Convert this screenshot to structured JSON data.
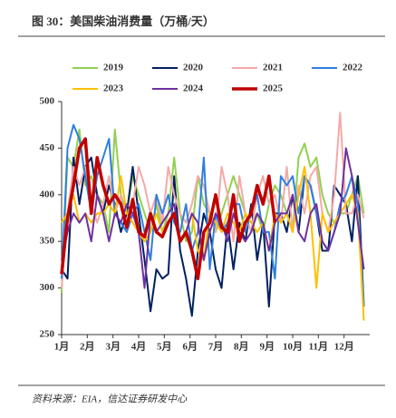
{
  "chart_data": {
    "type": "line",
    "title": "图 30：美国柴油消费量（万桶/天）",
    "source": "资料来源：EIA，信达证券研发中心",
    "x": [
      0,
      1,
      2,
      3,
      4,
      5,
      6,
      7,
      8,
      9,
      10,
      11,
      12,
      13,
      14,
      15,
      16,
      17,
      18,
      19,
      20,
      21,
      22,
      23,
      24,
      25,
      26,
      27,
      28,
      29,
      30,
      31,
      32,
      33,
      34,
      35,
      36,
      37,
      38,
      39,
      40,
      41,
      42,
      43,
      44,
      45,
      46,
      47,
      48,
      49,
      50,
      51
    ],
    "xlim": [
      0,
      52
    ],
    "xticks": [
      {
        "value": 0,
        "label": "1月"
      },
      {
        "value": 4.33,
        "label": "2月"
      },
      {
        "value": 8.67,
        "label": "3月"
      },
      {
        "value": 13,
        "label": "4月"
      },
      {
        "value": 17.33,
        "label": "5月"
      },
      {
        "value": 21.67,
        "label": "6月"
      },
      {
        "value": 26,
        "label": "7月"
      },
      {
        "value": 30.33,
        "label": "8月"
      },
      {
        "value": 34.67,
        "label": "9月"
      },
      {
        "value": 39,
        "label": "10月"
      },
      {
        "value": 43.33,
        "label": "11月"
      },
      {
        "value": 47.67,
        "label": "12月"
      }
    ],
    "ylim": [
      250,
      500
    ],
    "yticks": [
      250,
      300,
      350,
      400,
      450,
      500
    ],
    "series": [
      {
        "name": "2019",
        "color": "#92d050",
        "width": 2,
        "values": [
          295,
          440,
          430,
          470,
          410,
          420,
          400,
          390,
          360,
          470,
          400,
          380,
          420,
          400,
          380,
          360,
          390,
          360,
          380,
          440,
          380,
          350,
          360,
          420,
          390,
          380,
          360,
          380,
          400,
          420,
          400,
          380,
          370,
          380,
          360,
          390,
          410,
          400,
          380,
          360,
          440,
          455,
          430,
          440,
          400,
          380,
          370,
          380,
          380,
          400,
          420,
          380
        ]
      },
      {
        "name": "2020",
        "color": "#002060",
        "width": 2,
        "values": [
          320,
          310,
          440,
          390,
          430,
          440,
          400,
          380,
          410,
          390,
          360,
          380,
          430,
          380,
          330,
          275,
          320,
          310,
          315,
          420,
          340,
          310,
          270,
          340,
          380,
          360,
          320,
          300,
          370,
          320,
          370,
          350,
          390,
          330,
          370,
          280,
          380,
          380,
          360,
          400,
          360,
          420,
          410,
          380,
          340,
          340,
          410,
          400,
          390,
          350,
          420,
          280
        ]
      },
      {
        "name": "2021",
        "color": "#f4a9a8",
        "width": 2,
        "values": [
          300,
          380,
          430,
          410,
          430,
          390,
          370,
          390,
          420,
          380,
          400,
          360,
          390,
          430,
          410,
          380,
          400,
          370,
          430,
          400,
          380,
          370,
          390,
          420,
          410,
          380,
          360,
          430,
          400,
          350,
          420,
          380,
          360,
          400,
          420,
          390,
          400,
          370,
          430,
          360,
          410,
          380,
          420,
          430,
          380,
          360,
          400,
          488,
          380,
          380,
          400,
          375
        ]
      },
      {
        "name": "2022",
        "color": "#2f7fe0",
        "width": 2,
        "values": [
          310,
          450,
          475,
          460,
          420,
          380,
          420,
          440,
          460,
          380,
          370,
          360,
          380,
          390,
          360,
          330,
          400,
          380,
          400,
          370,
          360,
          390,
          340,
          360,
          440,
          320,
          380,
          360,
          370,
          390,
          390,
          360,
          380,
          400,
          360,
          360,
          310,
          420,
          410,
          420,
          380,
          420,
          410,
          380,
          350,
          340,
          360,
          390,
          400,
          420,
          390,
          280
        ]
      },
      {
        "name": "2023",
        "color": "#ffc000",
        "width": 2,
        "values": [
          370,
          380,
          400,
          370,
          380,
          370,
          380,
          380,
          390,
          380,
          420,
          380,
          370,
          360,
          350,
          360,
          380,
          360,
          370,
          380,
          350,
          360,
          380,
          340,
          330,
          380,
          370,
          360,
          380,
          370,
          360,
          380,
          370,
          360,
          370,
          340,
          380,
          370,
          380,
          360,
          400,
          430,
          380,
          300,
          380,
          360,
          370,
          380,
          390,
          400,
          380,
          265
        ]
      },
      {
        "name": "2024",
        "color": "#7030a0",
        "width": 2,
        "values": [
          330,
          360,
          380,
          370,
          380,
          350,
          400,
          380,
          350,
          380,
          370,
          390,
          380,
          360,
          300,
          380,
          360,
          370,
          380,
          390,
          350,
          360,
          380,
          370,
          330,
          360,
          380,
          370,
          350,
          380,
          360,
          350,
          360,
          380,
          370,
          340,
          370,
          380,
          380,
          400,
          360,
          350,
          380,
          390,
          350,
          340,
          360,
          380,
          450,
          420,
          370,
          320
        ]
      },
      {
        "name": "2025",
        "color": "#c00000",
        "width": 3.5,
        "values": [
          315,
          375,
          410,
          450,
          460,
          380,
          440,
          410,
          390,
          400,
          390,
          365,
          395,
          360,
          355,
          380,
          360,
          355,
          370,
          380,
          350,
          360,
          340,
          310,
          360,
          370,
          400,
          365,
          360,
          400,
          350,
          370,
          380,
          410,
          390,
          420,
          370,
          null,
          null,
          null,
          null,
          null,
          null,
          null,
          null,
          null,
          null,
          null,
          null,
          null,
          null,
          null
        ]
      }
    ]
  }
}
